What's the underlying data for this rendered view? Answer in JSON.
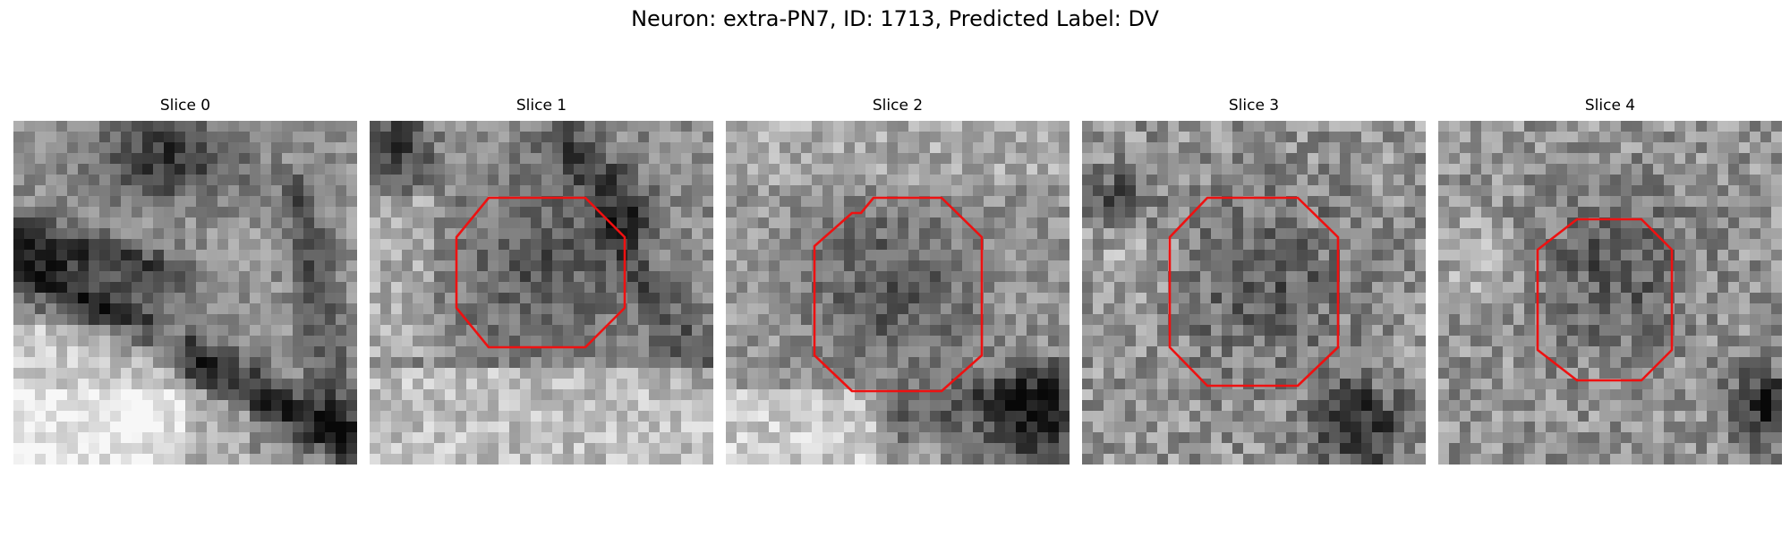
{
  "figure": {
    "title": "Neuron: extra-PN7, ID: 1713, Predicted Label: DV"
  },
  "panels": [
    {
      "title": "Slice 0",
      "has_contour": false
    },
    {
      "title": "Slice 1",
      "has_contour": true
    },
    {
      "title": "Slice 2",
      "has_contour": true
    },
    {
      "title": "Slice 3",
      "has_contour": true
    },
    {
      "title": "Slice 4",
      "has_contour": true
    }
  ],
  "colors": {
    "contour": "#ee1111",
    "colormap": "gray"
  }
}
